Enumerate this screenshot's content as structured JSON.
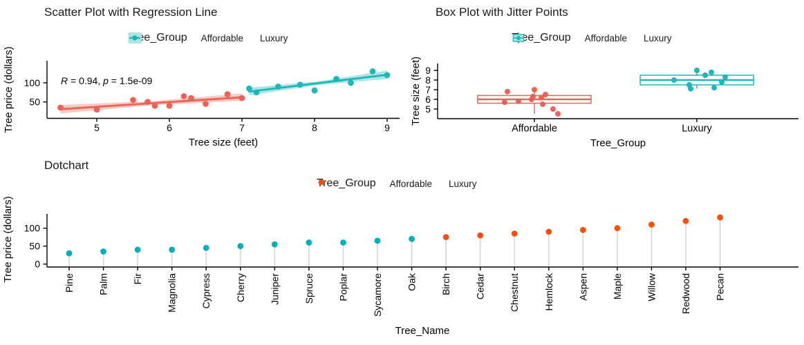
{
  "page": {
    "background": "#ffffff"
  },
  "chart_data": [
    {
      "type": "scatter",
      "title": "Scatter Plot with Regression Line",
      "legend_title": "Tree_Group",
      "legend_position": "top",
      "annotation_text": "R = 0.94, p = 1.5e-09",
      "annotation_parts": [
        {
          "text": "R",
          "italic": true
        },
        {
          "text": " = 0.94, ",
          "italic": false
        },
        {
          "text": "p",
          "italic": true
        },
        {
          "text": " = 1.5e-09",
          "italic": false
        }
      ],
      "xlabel": "Tree size (feet)",
      "ylabel": "Tree price (dollars)",
      "xticks": [
        5,
        6,
        7,
        8,
        9
      ],
      "yticks": [
        50,
        100
      ],
      "xlim": [
        4.3,
        9.15
      ],
      "ylim": [
        8,
        140
      ],
      "grid": false,
      "series": [
        {
          "name": "Affordable",
          "color": "#EE6157",
          "fill_tint": "#F9C9C4",
          "points": [
            [
              4.5,
              35
            ],
            [
              5.0,
              30
            ],
            [
              5.5,
              55
            ],
            [
              5.7,
              50
            ],
            [
              5.8,
              40
            ],
            [
              6.0,
              40
            ],
            [
              6.2,
              65
            ],
            [
              6.3,
              60
            ],
            [
              6.5,
              45
            ],
            [
              6.8,
              70
            ],
            [
              7.0,
              60
            ]
          ],
          "regression": {
            "x1": 4.5,
            "y1": 31,
            "x2": 7.0,
            "y2": 62
          },
          "ribbon": [
            [
              4.5,
              20,
              42
            ],
            [
              5.75,
              41,
              52
            ],
            [
              7.0,
              53,
              72
            ]
          ]
        },
        {
          "name": "Luxury",
          "color": "#1DB7B9",
          "fill_tint": "#ADE5E5",
          "points": [
            [
              7.1,
              85
            ],
            [
              7.2,
              75
            ],
            [
              7.5,
              90
            ],
            [
              7.8,
              95
            ],
            [
              8.0,
              80
            ],
            [
              8.3,
              110
            ],
            [
              8.5,
              100
            ],
            [
              8.8,
              130
            ],
            [
              9.0,
              120
            ]
          ],
          "regression": {
            "x1": 7.1,
            "y1": 77,
            "x2": 9.0,
            "y2": 121
          },
          "ribbon": [
            [
              7.1,
              67,
              87
            ],
            [
              8.05,
              94,
              104
            ],
            [
              9.0,
              110,
              132
            ]
          ]
        }
      ]
    },
    {
      "type": "box",
      "title": "Box Plot with Jitter Points",
      "legend_title": "Tree_Group",
      "xlabel": "Tree_Group",
      "ylabel": "Tree size (feet)",
      "yticks": [
        5,
        6,
        7,
        8,
        9
      ],
      "ylim": [
        4.3,
        9.5
      ],
      "categories": [
        "Affordable",
        "Luxury"
      ],
      "groups": [
        {
          "name": "Affordable",
          "color": "#EE6157",
          "fill_tint": "#F9C9C4",
          "stats": {
            "min": 4.5,
            "q1": 5.6,
            "median": 6.0,
            "q3": 6.4,
            "max": 7.0
          },
          "jitter": [
            {
              "dx": -39,
              "v": 6.8
            },
            {
              "dx": 0,
              "v": 7.0
            },
            {
              "dx": 16,
              "v": 6.5
            },
            {
              "dx": 10,
              "v": 6.2
            },
            {
              "dx": -2,
              "v": 6.3
            },
            {
              "dx": -4,
              "v": 6.0
            },
            {
              "dx": -23,
              "v": 5.8
            },
            {
              "dx": -43,
              "v": 5.7
            },
            {
              "dx": 12,
              "v": 5.5
            },
            {
              "dx": 27,
              "v": 5.0
            },
            {
              "dx": 34,
              "v": 4.5
            }
          ]
        },
        {
          "name": "Luxury",
          "color": "#1DB7B9",
          "fill_tint": "#ADE5E5",
          "stats": {
            "min": 7.1,
            "q1": 7.5,
            "median": 8.0,
            "q3": 8.5,
            "max": 9.0
          },
          "jitter": [
            {
              "dx": 0,
              "v": 9.0
            },
            {
              "dx": 21,
              "v": 8.8
            },
            {
              "dx": 12,
              "v": 8.5
            },
            {
              "dx": 41,
              "v": 8.3
            },
            {
              "dx": -33,
              "v": 8.0
            },
            {
              "dx": 36,
              "v": 7.8
            },
            {
              "dx": -11,
              "v": 7.5
            },
            {
              "dx": 25,
              "v": 7.2
            },
            {
              "dx": -9,
              "v": 7.1
            }
          ]
        }
      ]
    },
    {
      "type": "lollipop",
      "title": "Dotchart",
      "legend_title": "Tree_Group",
      "xlabel": "Tree_Name",
      "ylabel": "Tree price (dollars)",
      "yticks": [
        0,
        50,
        100
      ],
      "ylim": [
        -10,
        140
      ],
      "stem_color": "#D8D8D8",
      "legend": [
        {
          "name": "Affordable",
          "color": "#00AFBB"
        },
        {
          "name": "Luxury",
          "color": "#FC4E07"
        }
      ],
      "categories": [
        "Pine",
        "Palm",
        "Fir",
        "Magnolia",
        "Cypress",
        "Cherry",
        "Juniper",
        "Spruce",
        "Poplar",
        "Sycamore",
        "Oak",
        "Birch",
        "Cedar",
        "Chestnut",
        "Hemlock",
        "Aspen",
        "Maple",
        "Willow",
        "Redwood",
        "Pecan"
      ],
      "values": [
        30,
        35,
        40,
        40,
        45,
        50,
        55,
        60,
        60,
        65,
        70,
        75,
        80,
        85,
        90,
        95,
        100,
        110,
        120,
        130
      ],
      "point_groups": [
        "Affordable",
        "Affordable",
        "Affordable",
        "Affordable",
        "Affordable",
        "Affordable",
        "Affordable",
        "Affordable",
        "Affordable",
        "Affordable",
        "Affordable",
        "Luxury",
        "Luxury",
        "Luxury",
        "Luxury",
        "Luxury",
        "Luxury",
        "Luxury",
        "Luxury",
        "Luxury"
      ]
    }
  ]
}
